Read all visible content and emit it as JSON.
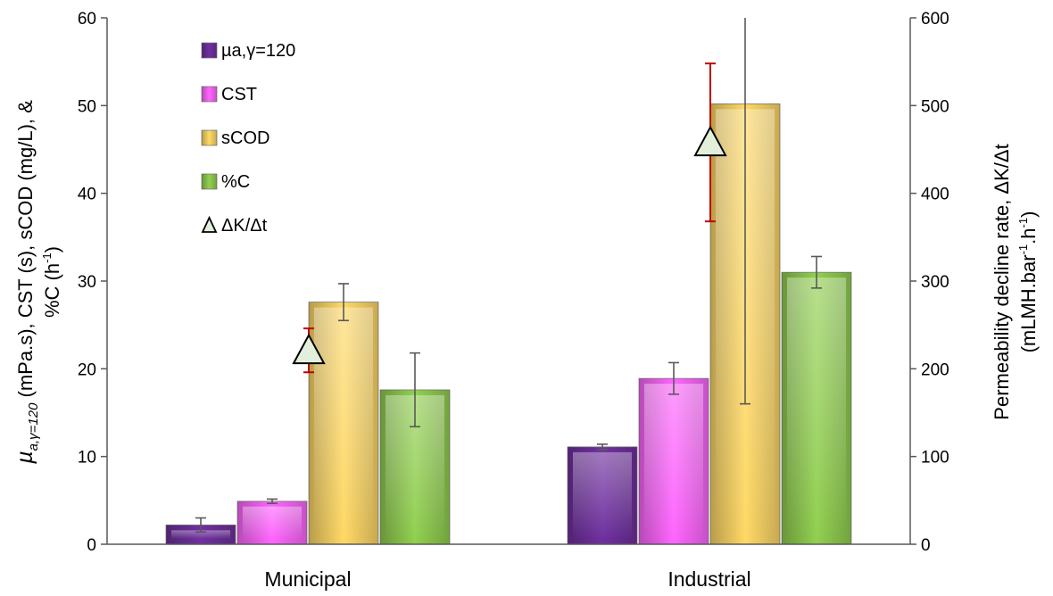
{
  "chart_data": {
    "type": "bar",
    "categories": [
      "Municipal",
      "Industrial"
    ],
    "series": [
      {
        "name": "µa,γ=120",
        "values": [
          2.2,
          11.1
        ],
        "errors": [
          0.8,
          0.3
        ],
        "color": "#7030a0"
      },
      {
        "name": "CST",
        "values": [
          4.9,
          18.9
        ],
        "errors": [
          0.25,
          1.8
        ],
        "color": "#ff66ff"
      },
      {
        "name": "sCOD",
        "values": [
          27.6,
          50.2
        ],
        "errors": [
          2.1,
          34.2
        ],
        "color": "#ffd966"
      },
      {
        "name": "%C",
        "values": [
          17.6,
          31.0
        ],
        "errors": [
          4.2,
          1.8
        ],
        "color": "#92d050"
      }
    ],
    "secondary_series": {
      "name": "ΔK/Δt",
      "type": "scatter",
      "marker": "triangle",
      "values": [
        221,
        458
      ],
      "errors": [
        25,
        90
      ],
      "color": "#e2efda",
      "error_color": "#c00000"
    },
    "y_left": {
      "label_prefix": "µ",
      "label_subscript": "a,γ=120",
      "label_line1_rest": " (mPa.s), CST (s), sCOD (mg/L), &",
      "label_line2_main": "%C (h",
      "label_line2_sup": "-1",
      "label_line2_end": ")",
      "ylim": [
        0,
        60
      ],
      "ticks": [
        "0",
        "10",
        "20",
        "30",
        "40",
        "50",
        "60"
      ]
    },
    "y_right": {
      "label_line1": "Permeability decline rate,  ΔK/Δt",
      "label_line2_a": "(mLMH.bar",
      "label_line2_sup1": "-1",
      "label_line2_b": ".h",
      "label_line2_sup2": "-1",
      "label_line2_c": ")",
      "ylim": [
        0,
        600
      ],
      "ticks": [
        "0",
        "100",
        "200",
        "300",
        "400",
        "500",
        "600"
      ]
    },
    "legend_position": "top-left",
    "grid": false
  }
}
